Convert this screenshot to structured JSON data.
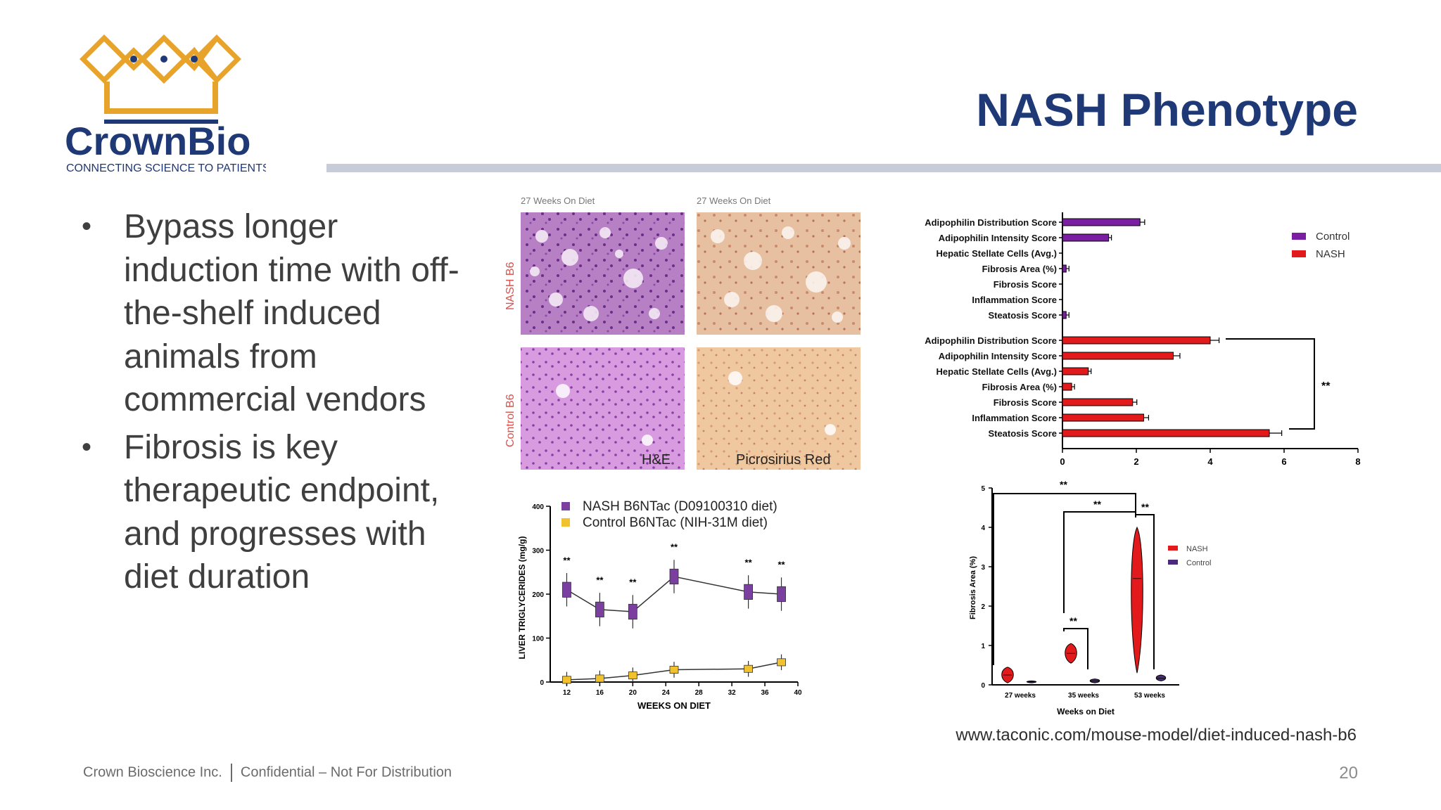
{
  "logo": {
    "name": "CrownBio",
    "tagline": "CONNECTING SCIENCE TO PATIENTS",
    "color_gold": "#e8a32a",
    "color_navy": "#1f3876"
  },
  "title": "NASH Phenotype",
  "bullets": [
    "Bypass longer induction time with off-the-shelf induced animals from commercial vendors",
    "Fibrosis is key therapeutic endpoint, and progresses with diet duration"
  ],
  "histology": {
    "col_headers": [
      "27 Weeks On Diet",
      "27 Weeks On Diet"
    ],
    "row_labels": [
      "NASH B6",
      "Control B6"
    ],
    "stain_labels": [
      "H&E",
      "Picrosirius Red"
    ]
  },
  "hbar_chart": {
    "type": "bar",
    "orientation": "horizontal",
    "categories": [
      "Adipophilin Distribution Score",
      "Adipophilin Intensity Score",
      "Hepatic Stellate Cells (Avg.)",
      "Fibrosis Area (%)",
      "Fibrosis Score",
      "Inflammation Score",
      "Steatosis Score"
    ],
    "series": [
      {
        "name": "Control",
        "color": "#7b1fa2",
        "values": [
          2.1,
          1.25,
          0,
          0.1,
          0,
          0,
          0.1
        ]
      },
      {
        "name": "NASH",
        "color": "#e31a1c",
        "values": [
          4.0,
          3.0,
          0.7,
          0.25,
          1.9,
          2.2,
          5.6
        ]
      }
    ],
    "xticks": [
      "0",
      "2",
      "4",
      "6",
      "8"
    ],
    "xlim": [
      0,
      8
    ],
    "significance": "**",
    "legend": "top-right"
  },
  "line_chart": {
    "type": "line",
    "series": [
      {
        "name": "NASH B6NTac (D09100310 diet)",
        "color": "#7b3fa0",
        "x": [
          12,
          16,
          20,
          25,
          34,
          38
        ],
        "y": [
          210,
          165,
          160,
          240,
          205,
          200
        ]
      },
      {
        "name": "Control B6NTac (NIH-31M diet)",
        "color": "#f2c12e",
        "x": [
          12,
          16,
          20,
          25,
          34,
          38
        ],
        "y": [
          5,
          8,
          15,
          28,
          30,
          45
        ]
      }
    ],
    "xticks": [
      "12",
      "16",
      "20",
      "24",
      "28",
      "32",
      "36",
      "40"
    ],
    "yticks": [
      "0",
      "100",
      "200",
      "300",
      "400"
    ],
    "xlabel": "WEEKS ON DIET",
    "ylabel": "LIVER TRIGLYCERIDES (mg/g)",
    "significance_labels": [
      "**",
      "**",
      "**",
      "**",
      "**",
      "**"
    ]
  },
  "violin_chart": {
    "type": "violin",
    "categories": [
      "27 weeks",
      "35 weeks",
      "53 weeks"
    ],
    "series": [
      {
        "name": "NASH",
        "color": "#e31a1c",
        "medians": [
          0.25,
          0.8,
          2.7
        ],
        "ranges": [
          [
            0.05,
            0.45
          ],
          [
            0.55,
            1.05
          ],
          [
            0.3,
            4.0
          ]
        ]
      },
      {
        "name": "Control",
        "color": "#4b2a7b",
        "medians": [
          0.08,
          0.1,
          0.17
        ],
        "ranges": [
          [
            0.05,
            0.1
          ],
          [
            0.05,
            0.15
          ],
          [
            0.1,
            0.25
          ]
        ]
      }
    ],
    "yticks": [
      "0",
      "1",
      "2",
      "3",
      "4",
      "5"
    ],
    "ylim": [
      0,
      5
    ],
    "xlabel": "Weeks on Diet",
    "ylabel": "Fibrosis Area (%)",
    "significance": "**"
  },
  "source_url": "www.taconic.com/mouse-model/diet-induced-nash-b6",
  "footer": {
    "company": "Crown Bioscience Inc.",
    "note": "Confidential – Not For Distribution"
  },
  "page_number": "20"
}
